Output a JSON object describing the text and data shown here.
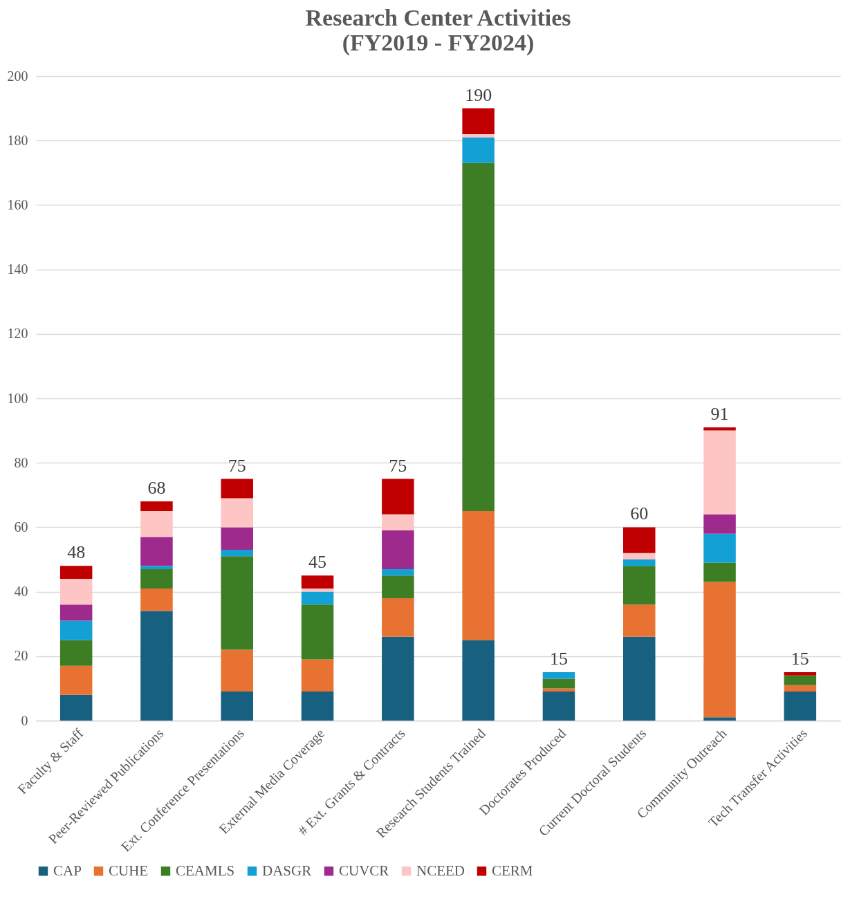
{
  "chart_data": {
    "type": "bar",
    "stacked": true,
    "title": "Research Center Activities\n(FY2019 - FY2024)",
    "categories": [
      "Faculty & Staff",
      "Peer-Reviewed Publications",
      "Ext. Conference Presentations",
      "External Media Coverage",
      "# Ext. Grants & Contracts",
      "Research Students Trained",
      "Doctorates Produced",
      "Current Doctoral Students",
      "Community Outreach",
      "Tech Transfer Activities"
    ],
    "series": [
      {
        "name": "CAP",
        "color": "#17607f",
        "values": [
          8,
          34,
          9,
          9,
          26,
          25,
          9,
          26,
          1,
          9
        ]
      },
      {
        "name": "CUHE",
        "color": "#e87232",
        "values": [
          9,
          7,
          13,
          10,
          12,
          40,
          1,
          10,
          42,
          2
        ]
      },
      {
        "name": "CEAMLS",
        "color": "#3d7d23",
        "values": [
          8,
          6,
          29,
          17,
          7,
          108,
          3,
          12,
          6,
          3
        ]
      },
      {
        "name": "DASGR",
        "color": "#13a0d5",
        "values": [
          6,
          1,
          2,
          4,
          2,
          8,
          2,
          2,
          9,
          null
        ]
      },
      {
        "name": "CUVCR",
        "color": "#9e2a8e",
        "values": [
          5,
          9,
          7,
          null,
          12,
          null,
          null,
          null,
          6,
          null
        ]
      },
      {
        "name": "NCEED",
        "color": "#fec5c5",
        "values": [
          8,
          8,
          9,
          1,
          5,
          1,
          null,
          2,
          26,
          null
        ]
      },
      {
        "name": "CERM",
        "color": "#c00000",
        "values": [
          4,
          3,
          6,
          4,
          11,
          8,
          null,
          8,
          1,
          1
        ]
      }
    ],
    "totals": [
      "48",
      "68",
      "75",
      "45",
      "75",
      "190",
      "15",
      "60",
      "91",
      "15"
    ],
    "ylim": [
      0,
      200
    ],
    "yticks": [
      0,
      20,
      40,
      60,
      80,
      100,
      120,
      140,
      160,
      180,
      200
    ],
    "grid": "y",
    "legend": "bottom"
  }
}
